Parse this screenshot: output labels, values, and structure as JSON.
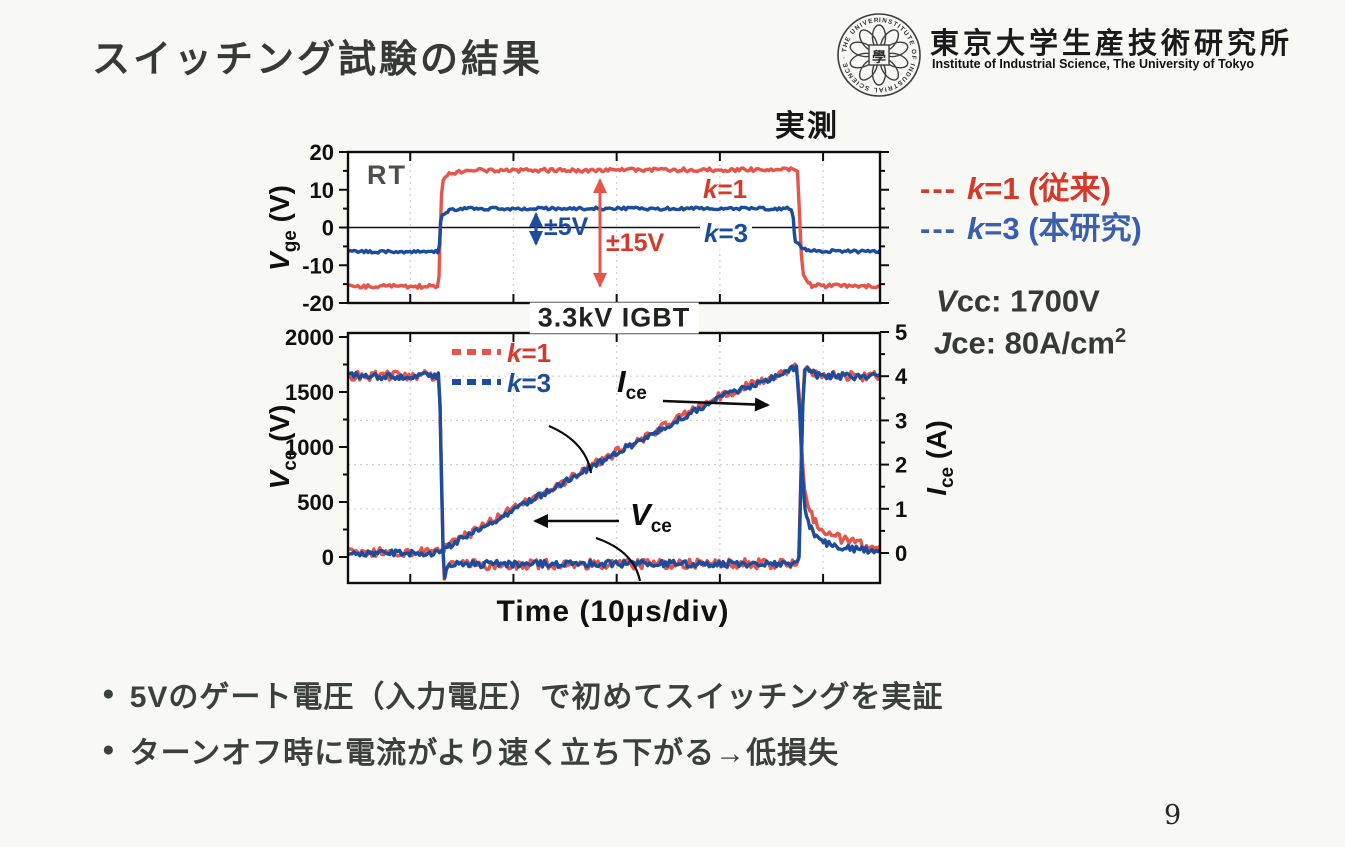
{
  "colors": {
    "red_text": "#d6382a",
    "red_trace": "#e6554a",
    "blue_text": "#3a5fae",
    "blue_trace": "#1c4c9c",
    "axis": "#0d0d0d",
    "grid": "#cfcfcf",
    "dark_text": "#363a33"
  },
  "slide": {
    "title": "スイッチング試験の結果",
    "measured_badge": "実測",
    "page_number": "9",
    "bullet_marker": "●",
    "bullets": [
      "5Vのゲート電圧（入力電圧）で初めてスイッチングを実証",
      "ターンオフ時に電流がより速く立ち下がる→低損失"
    ]
  },
  "header": {
    "org_ja": "東京大学生産技術研究所",
    "org_en": "Institute of Industrial Science, The University of Tokyo",
    "seal_char": "學",
    "seal_ring_text": "INSTITUTE OF INDUSTRIAL SCIENCE · THE UNIVERSITY OF TOKYO"
  },
  "legend_right": {
    "k1": {
      "dash": "---",
      "k": "k",
      "rest": "=1 (従来)"
    },
    "k3": {
      "dash": "---",
      "k": "k",
      "rest": "=3 (本研究)"
    }
  },
  "conditions": [
    {
      "sym": "V",
      "rest": "cc: 1700V",
      "sup": ""
    },
    {
      "sym": "J",
      "rest": "ce: 80A/cm",
      "sup": "2"
    }
  ],
  "chart_data": [
    {
      "id": "vge",
      "type": "line",
      "ylabel": {
        "sym": "V",
        "sub": "ge",
        "unit": " (V)"
      },
      "ylim": [
        -20,
        20
      ],
      "yticks": [
        20,
        10,
        0,
        -10,
        -20
      ],
      "yticks_minor": [
        15,
        5,
        -5,
        -15
      ],
      "x_axis_note": "shared time axis, 10µs/div",
      "inner_label": "RT",
      "annotations": {
        "k1": {
          "k": "k",
          "rest": "=1"
        },
        "k3": {
          "k": "k",
          "rest": "=3"
        },
        "pm5": "±5V",
        "pm15": "±15V"
      },
      "series": [
        {
          "name": "k=1 Vge",
          "color": "#e6554a",
          "axis": "y",
          "noise": 0.5,
          "width": 3.4,
          "seed": 11,
          "points": [
            [
              0,
              -15.6
            ],
            [
              0.168,
              -15.6
            ],
            [
              0.171,
              -13
            ],
            [
              0.173,
              -3
            ],
            [
              0.176,
              9
            ],
            [
              0.179,
              12.5
            ],
            [
              0.19,
              14.3
            ],
            [
              0.22,
              15.1
            ],
            [
              0.5,
              15.2
            ],
            [
              0.84,
              15.4
            ],
            [
              0.845,
              14.8
            ],
            [
              0.848,
              6
            ],
            [
              0.852,
              -7
            ],
            [
              0.856,
              -12.5
            ],
            [
              0.862,
              -14
            ],
            [
              0.872,
              -15.4
            ],
            [
              1,
              -15.6
            ]
          ]
        },
        {
          "name": "k=3 Vge",
          "color": "#1c4c9c",
          "axis": "y",
          "noise": 0.38,
          "width": 3.4,
          "seed": 77,
          "points": [
            [
              0,
              -6.4
            ],
            [
              0.169,
              -6.4
            ],
            [
              0.172,
              -4.5
            ],
            [
              0.174,
              1.5
            ],
            [
              0.177,
              3.3
            ],
            [
              0.182,
              3.6
            ],
            [
              0.19,
              4.6
            ],
            [
              0.23,
              5.0
            ],
            [
              0.833,
              5.0
            ],
            [
              0.837,
              2.5
            ],
            [
              0.839,
              -1.5
            ],
            [
              0.841,
              -3.8
            ],
            [
              0.848,
              -4.3
            ],
            [
              0.853,
              -5.5
            ],
            [
              0.865,
              -6.2
            ],
            [
              1,
              -6.4
            ]
          ]
        }
      ]
    },
    {
      "id": "vce_ice",
      "type": "line",
      "title": "3.3kV IGBT",
      "xlabel": "Time (10μs/div)",
      "ylabel_left": {
        "sym": "V",
        "sub": "ce",
        "unit": " (V)"
      },
      "ylabel_right": {
        "sym": "I",
        "sub": "ce",
        "unit": " (A)"
      },
      "ylim_left": [
        0,
        2000
      ],
      "ylim_right": [
        0,
        5
      ],
      "yticks_left": [
        2000,
        1500,
        1000,
        500,
        0
      ],
      "yticks_left_minor": [
        1750,
        1250,
        750,
        250
      ],
      "yticks_right": [
        5,
        4,
        3,
        2,
        1,
        0
      ],
      "yticks_right_minor": [
        4.5,
        3.5,
        2.5,
        1.5,
        0.5
      ],
      "legend": {
        "k1": {
          "k": "k",
          "rest": "=1"
        },
        "k3": {
          "k": "k",
          "rest": "=3"
        }
      },
      "curve_labels": {
        "ice": {
          "sym": "I",
          "sub": "ce"
        },
        "vce": {
          "sym": "V",
          "sub": "ce"
        }
      },
      "series": [
        {
          "name": "Vce k=1",
          "color": "#e6554a",
          "axis": "left",
          "noise": 45,
          "width": 3.4,
          "seed": 21,
          "points": [
            [
              0,
              1650
            ],
            [
              0.17,
              1650
            ],
            [
              0.173,
              1400
            ],
            [
              0.176,
              700
            ],
            [
              0.179,
              50
            ],
            [
              0.181,
              -200
            ],
            [
              0.184,
              -120
            ],
            [
              0.19,
              -70
            ],
            [
              0.5,
              -65
            ],
            [
              0.843,
              -60
            ],
            [
              0.847,
              -20
            ],
            [
              0.85,
              500
            ],
            [
              0.854,
              1300
            ],
            [
              0.858,
              1700
            ],
            [
              0.863,
              1730
            ],
            [
              0.87,
              1690
            ],
            [
              0.88,
              1655
            ],
            [
              0.92,
              1645
            ],
            [
              1,
              1645
            ]
          ]
        },
        {
          "name": "Ice k=1",
          "color": "#e6554a",
          "axis": "right",
          "noise": 0.1,
          "width": 3.4,
          "seed": 31,
          "points": [
            [
              0,
              0.02
            ],
            [
              0.172,
              0.02
            ],
            [
              0.177,
              0.08
            ],
            [
              0.19,
              0.18
            ],
            [
              0.22,
              0.38
            ],
            [
              0.3,
              0.92
            ],
            [
              0.4,
              1.58
            ],
            [
              0.5,
              2.25
            ],
            [
              0.6,
              2.9
            ],
            [
              0.7,
              3.55
            ],
            [
              0.8,
              4.0
            ],
            [
              0.835,
              4.18
            ],
            [
              0.843,
              4.22
            ],
            [
              0.848,
              3.6
            ],
            [
              0.853,
              2.3
            ],
            [
              0.858,
              1.45
            ],
            [
              0.865,
              1.05
            ],
            [
              0.875,
              0.78
            ],
            [
              0.89,
              0.55
            ],
            [
              0.92,
              0.35
            ],
            [
              0.96,
              0.2
            ],
            [
              1,
              0.13
            ]
          ]
        },
        {
          "name": "Vce k=3",
          "color": "#1c4c9c",
          "axis": "left",
          "noise": 32,
          "width": 3.4,
          "seed": 41,
          "points": [
            [
              0,
              1645
            ],
            [
              0.17,
              1645
            ],
            [
              0.173,
              1380
            ],
            [
              0.176,
              650
            ],
            [
              0.179,
              20
            ],
            [
              0.182,
              -190
            ],
            [
              0.185,
              -110
            ],
            [
              0.19,
              -65
            ],
            [
              0.5,
              -60
            ],
            [
              0.843,
              -58
            ],
            [
              0.848,
              0
            ],
            [
              0.851,
              600
            ],
            [
              0.855,
              1400
            ],
            [
              0.859,
              1700
            ],
            [
              0.864,
              1720
            ],
            [
              0.872,
              1680
            ],
            [
              0.885,
              1650
            ],
            [
              1,
              1640
            ]
          ]
        },
        {
          "name": "Ice k=3",
          "color": "#1c4c9c",
          "axis": "right",
          "noise": 0.07,
          "width": 3.4,
          "seed": 51,
          "points": [
            [
              0,
              0.0
            ],
            [
              0.172,
              0.0
            ],
            [
              0.177,
              0.06
            ],
            [
              0.19,
              0.16
            ],
            [
              0.22,
              0.36
            ],
            [
              0.3,
              0.9
            ],
            [
              0.4,
              1.56
            ],
            [
              0.5,
              2.23
            ],
            [
              0.6,
              2.88
            ],
            [
              0.7,
              3.53
            ],
            [
              0.8,
              3.98
            ],
            [
              0.835,
              4.17
            ],
            [
              0.843,
              4.2
            ],
            [
              0.849,
              3.2
            ],
            [
              0.854,
              1.8
            ],
            [
              0.859,
              1.0
            ],
            [
              0.868,
              0.6
            ],
            [
              0.88,
              0.38
            ],
            [
              0.9,
              0.22
            ],
            [
              0.94,
              0.1
            ],
            [
              1,
              0.04
            ]
          ]
        }
      ]
    }
  ]
}
